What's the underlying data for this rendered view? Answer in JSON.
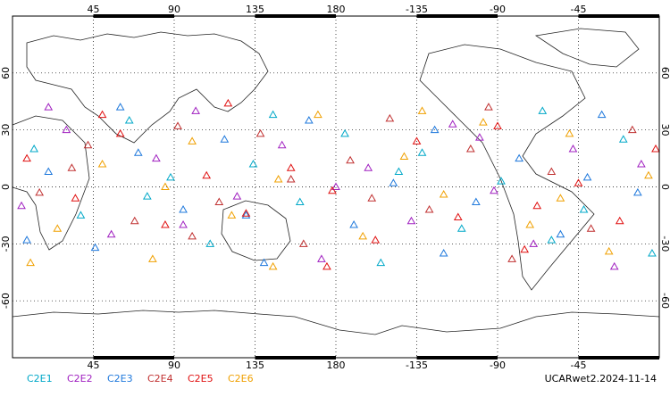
{
  "chart_data": {
    "type": "scatter",
    "xlim": [
      0,
      360
    ],
    "ylim": [
      -90,
      90
    ],
    "xticks": [
      45,
      90,
      135,
      180,
      {
        "value": 225,
        "label": "-135"
      },
      {
        "value": 270,
        "label": "-90"
      },
      {
        "value": 315,
        "label": "-45"
      }
    ],
    "yticks": [
      -60,
      -30,
      0,
      30,
      60
    ],
    "grid": true,
    "footer": "UCARwet2.2024-11-14",
    "series": [
      {
        "name": "C2E1",
        "color": "#00a8c8",
        "x": [
          12,
          38,
          65,
          88,
          110,
          134,
          160,
          185,
          205,
          228,
          250,
          272,
          295,
          318,
          340,
          356,
          75,
          145,
          215,
          300
        ],
        "values": [
          20,
          -15,
          35,
          5,
          -30,
          12,
          -8,
          28,
          -40,
          18,
          -22,
          3,
          40,
          -12,
          25,
          -35,
          -5,
          38,
          8,
          -28
        ]
      },
      {
        "name": "C2E2",
        "color": "#a020c0",
        "x": [
          5,
          30,
          55,
          80,
          102,
          125,
          150,
          172,
          198,
          222,
          245,
          268,
          290,
          312,
          335,
          350,
          95,
          180,
          260,
          20
        ],
        "values": [
          -10,
          30,
          -25,
          15,
          40,
          -5,
          22,
          -38,
          10,
          -18,
          33,
          -2,
          -30,
          20,
          -42,
          12,
          -20,
          0,
          26,
          42
        ]
      },
      {
        "name": "C2E3",
        "color": "#1e78dc",
        "x": [
          20,
          46,
          70,
          95,
          118,
          140,
          165,
          190,
          212,
          235,
          258,
          282,
          305,
          328,
          348,
          8,
          130,
          240,
          320,
          60
        ],
        "values": [
          8,
          -32,
          18,
          -12,
          25,
          -40,
          35,
          -20,
          2,
          30,
          -8,
          15,
          -25,
          38,
          -3,
          -28,
          -15,
          -35,
          5,
          42
        ]
      },
      {
        "name": "C2E4",
        "color": "#c03030",
        "x": [
          15,
          42,
          68,
          92,
          115,
          138,
          162,
          188,
          210,
          232,
          255,
          278,
          300,
          322,
          345,
          100,
          200,
          265,
          33,
          155
        ],
        "values": [
          -3,
          22,
          -18,
          32,
          -8,
          28,
          -30,
          14,
          36,
          -12,
          20,
          -38,
          8,
          -22,
          30,
          -26,
          -6,
          42,
          10,
          4
        ]
      },
      {
        "name": "C2E5",
        "color": "#e01010",
        "x": [
          8,
          35,
          60,
          85,
          108,
          130,
          155,
          178,
          202,
          225,
          248,
          270,
          292,
          315,
          338,
          358,
          50,
          175,
          285,
          120
        ],
        "values": [
          15,
          -6,
          28,
          -20,
          6,
          -14,
          10,
          -2,
          -28,
          24,
          -16,
          32,
          -10,
          2,
          -18,
          20,
          38,
          -42,
          -33,
          44
        ]
      },
      {
        "name": "C2E6",
        "color": "#f0a000",
        "x": [
          25,
          50,
          78,
          100,
          122,
          148,
          170,
          195,
          218,
          240,
          262,
          288,
          310,
          332,
          354,
          145,
          228,
          10,
          305,
          85
        ],
        "values": [
          -22,
          12,
          -38,
          24,
          -15,
          4,
          38,
          -26,
          16,
          -4,
          34,
          -20,
          28,
          -34,
          6,
          -42,
          40,
          -40,
          -6,
          0
        ]
      }
    ]
  }
}
